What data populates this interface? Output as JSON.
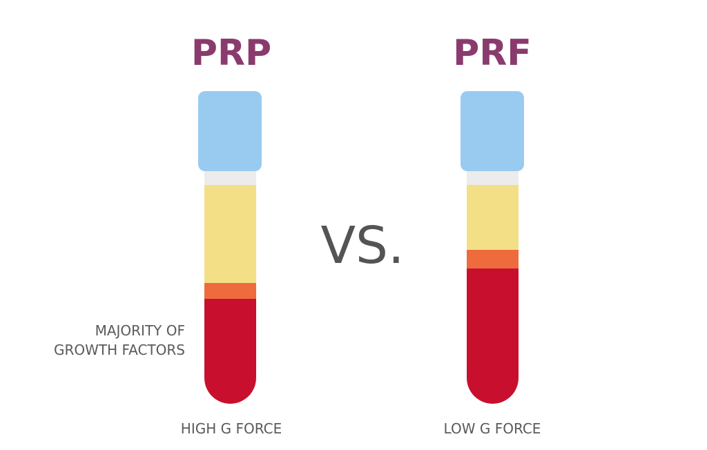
{
  "left": {
    "title": "PRP",
    "note": [
      "MAJORITY OF",
      "GROWTH FACTORS"
    ],
    "caption": "HIGH G FORCE"
  },
  "center": "VS.",
  "right": {
    "title": "PRF",
    "caption": "LOW G FORCE"
  }
}
